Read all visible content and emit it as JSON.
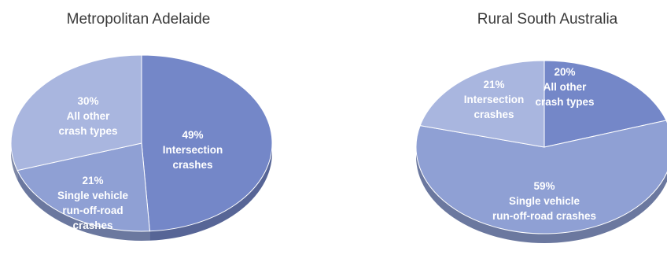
{
  "chart_data": [
    {
      "type": "pie",
      "title": "Metropolitan Adelaide",
      "slices": [
        {
          "label": "49%",
          "category": "Intersection crashes",
          "value": 49,
          "color": "#7487c8"
        },
        {
          "label": "21%",
          "category": "Single vehicle run-off-road crashes",
          "value": 21,
          "color": "#8fa0d4"
        },
        {
          "label": "30%",
          "category": "All other crash types",
          "value": 30,
          "color": "#a9b6df"
        }
      ]
    },
    {
      "type": "pie",
      "title": "Rural South Australia",
      "slices": [
        {
          "label": "20%",
          "category": "All other crash types",
          "value": 20,
          "color": "#7487c8"
        },
        {
          "label": "59%",
          "category": "Single vehicle run-off-road crashes",
          "value": 59,
          "color": "#8fa0d4"
        },
        {
          "label": "21%",
          "category": "Intersection crashes",
          "value": 21,
          "color": "#a9b6df"
        }
      ]
    }
  ],
  "label_lines": [
    [
      [
        "Intersection",
        "crashes"
      ],
      [
        "Single vehicle",
        "run-off-road",
        "crashes"
      ],
      [
        "All other",
        "crash types"
      ]
    ],
    [
      [
        "All other",
        "crash types"
      ],
      [
        "Single vehicle",
        "run-off-road crashes"
      ],
      [
        "Intersection",
        "crashes"
      ]
    ]
  ]
}
